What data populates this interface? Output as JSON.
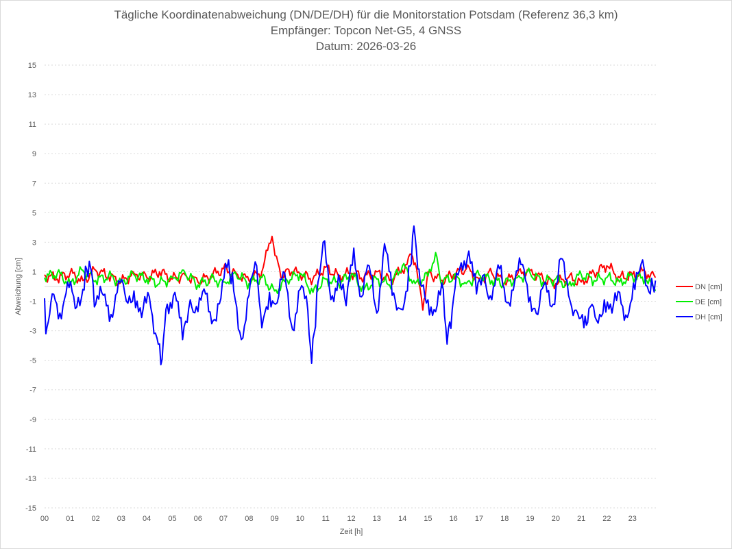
{
  "chart_data": {
    "type": "line",
    "title": "Tägliche Koordinatenabweichung (DN/DE/DH) für die Monitorstation Potsdam (Referenz 36,3 km)",
    "subtitle": "Empfänger: Topcon Net-G5, 4 GNSS",
    "date_line": "Datum: 2026-03-26",
    "xlabel": "Zeit [h]",
    "ylabel": "Abweichung [cm]",
    "xlim": [
      0,
      24
    ],
    "ylim": [
      -15,
      15
    ],
    "x_ticks": [
      "00",
      "01",
      "02",
      "03",
      "04",
      "05",
      "06",
      "07",
      "08",
      "09",
      "10",
      "11",
      "12",
      "13",
      "14",
      "15",
      "16",
      "17",
      "18",
      "19",
      "20",
      "21",
      "22",
      "23"
    ],
    "y_ticks": [
      "15",
      "13",
      "11",
      "9",
      "7",
      "5",
      "3",
      "1",
      "-1",
      "-3",
      "-5",
      "-7",
      "-9",
      "-11",
      "-13",
      "-15"
    ],
    "grid": "horizontal-dotted",
    "legend_position": "right",
    "series": [
      {
        "name": "DN [cm]",
        "color": "#ff0000",
        "x": [
          0,
          0.5,
          1,
          1.5,
          2,
          2.5,
          3,
          3.5,
          4,
          4.5,
          5,
          5.5,
          6,
          6.5,
          7,
          7.5,
          8,
          8.5,
          8.9,
          9.25,
          9.5,
          10,
          10.5,
          11,
          11.5,
          12,
          12.5,
          13,
          13.5,
          14,
          14.3,
          14.5,
          14.8,
          15,
          15.5,
          16,
          16.5,
          17,
          17.5,
          18,
          18.5,
          19,
          19.5,
          20,
          20.5,
          21,
          21.5,
          22,
          22.5,
          23,
          23.5,
          23.9
        ],
        "values": [
          0.8,
          0.5,
          0.9,
          0.4,
          1.1,
          0.7,
          0.3,
          0.9,
          0.6,
          1.0,
          0.5,
          0.8,
          0.3,
          0.7,
          1.2,
          0.9,
          0.4,
          1.0,
          3.4,
          0.6,
          1.2,
          0.8,
          0.5,
          1.3,
          0.7,
          0.9,
          0.6,
          1.0,
          0.4,
          1.1,
          2.2,
          1.6,
          -1.6,
          1.0,
          0.4,
          0.8,
          1.2,
          0.5,
          0.9,
          0.3,
          0.8,
          1.1,
          0.5,
          0.2,
          0.6,
          0.3,
          0.9,
          1.4,
          0.6,
          0.8,
          1.0,
          0.6
        ]
      },
      {
        "name": "DE [cm]",
        "color": "#00ee00",
        "x": [
          0,
          0.5,
          1,
          1.5,
          2,
          2.5,
          3,
          3.5,
          4,
          4.5,
          5,
          5.5,
          6,
          6.5,
          7,
          7.5,
          8,
          8.5,
          9,
          9.5,
          10,
          10.5,
          11,
          11.5,
          12,
          12.5,
          13,
          13.5,
          14,
          14.5,
          15,
          15.3,
          15.5,
          16,
          16.5,
          17,
          17.5,
          18,
          18.5,
          19,
          19.5,
          20,
          20.5,
          21,
          21.5,
          22,
          22.5,
          23,
          23.5,
          23.9
        ],
        "values": [
          0.6,
          0.9,
          0.2,
          1.1,
          0.4,
          0.7,
          0.3,
          0.8,
          0.5,
          0.2,
          0.6,
          0.9,
          0.1,
          0.5,
          0.3,
          0.8,
          0.2,
          0.6,
          -0.3,
          0.4,
          0.9,
          -0.4,
          0.5,
          0.2,
          0.8,
          -0.2,
          0.5,
          0.1,
          1.4,
          0.2,
          0.7,
          2.3,
          0.3,
          0.6,
          0.2,
          0.8,
          0.4,
          0.2,
          0.6,
          0.9,
          0.3,
          0.5,
          0.1,
          0.8,
          0.4,
          0.6,
          0.3,
          0.7,
          0.5,
          -0.3
        ]
      },
      {
        "name": "DH [cm]",
        "color": "#0000ff",
        "x": [
          0,
          0.05,
          0.3,
          0.6,
          0.9,
          1.2,
          1.5,
          1.75,
          2,
          2.3,
          2.6,
          2.9,
          3.2,
          3.5,
          3.8,
          4.1,
          4.4,
          4.55,
          4.8,
          5.1,
          5.4,
          5.7,
          6,
          6.3,
          6.6,
          6.9,
          7.2,
          7.4,
          7.7,
          8,
          8.3,
          8.5,
          8.8,
          9.1,
          9.4,
          9.7,
          10,
          10.3,
          10.45,
          10.7,
          10.9,
          11.2,
          11.5,
          11.8,
          12.1,
          12.4,
          12.7,
          13,
          13.3,
          13.6,
          13.9,
          14.2,
          14.45,
          14.7,
          15,
          15.3,
          15.6,
          15.75,
          16,
          16.3,
          16.6,
          16.9,
          17.2,
          17.5,
          17.8,
          18.1,
          18.4,
          18.7,
          19,
          19.3,
          19.6,
          19.9,
          20.2,
          20.5,
          20.8,
          21.1,
          21.3,
          21.6,
          21.9,
          22.2,
          22.5,
          22.8,
          23.1,
          23.4,
          23.7,
          23.9
        ],
        "values": [
          -0.8,
          -3.2,
          -0.5,
          -1.8,
          0.3,
          -1.5,
          -0.2,
          1.7,
          -1.2,
          -0.6,
          -1.9,
          0.4,
          -1.0,
          -0.3,
          -2.1,
          -0.7,
          -3.5,
          -5.3,
          -1.2,
          -0.4,
          -3.6,
          -0.9,
          -1.7,
          -0.5,
          -2.3,
          -0.8,
          1.8,
          -0.3,
          -3.6,
          -0.6,
          1.4,
          -2.8,
          -0.4,
          -1.1,
          0.9,
          -2.9,
          -0.2,
          -1.6,
          -5.2,
          0.3,
          3.0,
          -0.9,
          0.8,
          -1.3,
          2.6,
          -0.7,
          1.4,
          -1.8,
          2.9,
          -0.6,
          -1.5,
          -0.3,
          4.1,
          0.2,
          -0.9,
          -1.7,
          -0.2,
          -3.9,
          -0.8,
          1.6,
          2.4,
          -0.5,
          0.8,
          -0.9,
          1.2,
          -1.1,
          0.4,
          1.5,
          -0.7,
          -1.9,
          0.3,
          -1.2,
          1.9,
          -0.6,
          -1.6,
          -2.8,
          -1.5,
          -2.3,
          -0.9,
          -1.8,
          -0.4,
          -2.1,
          -0.2,
          1.8,
          -0.5,
          0.4
        ]
      }
    ]
  }
}
